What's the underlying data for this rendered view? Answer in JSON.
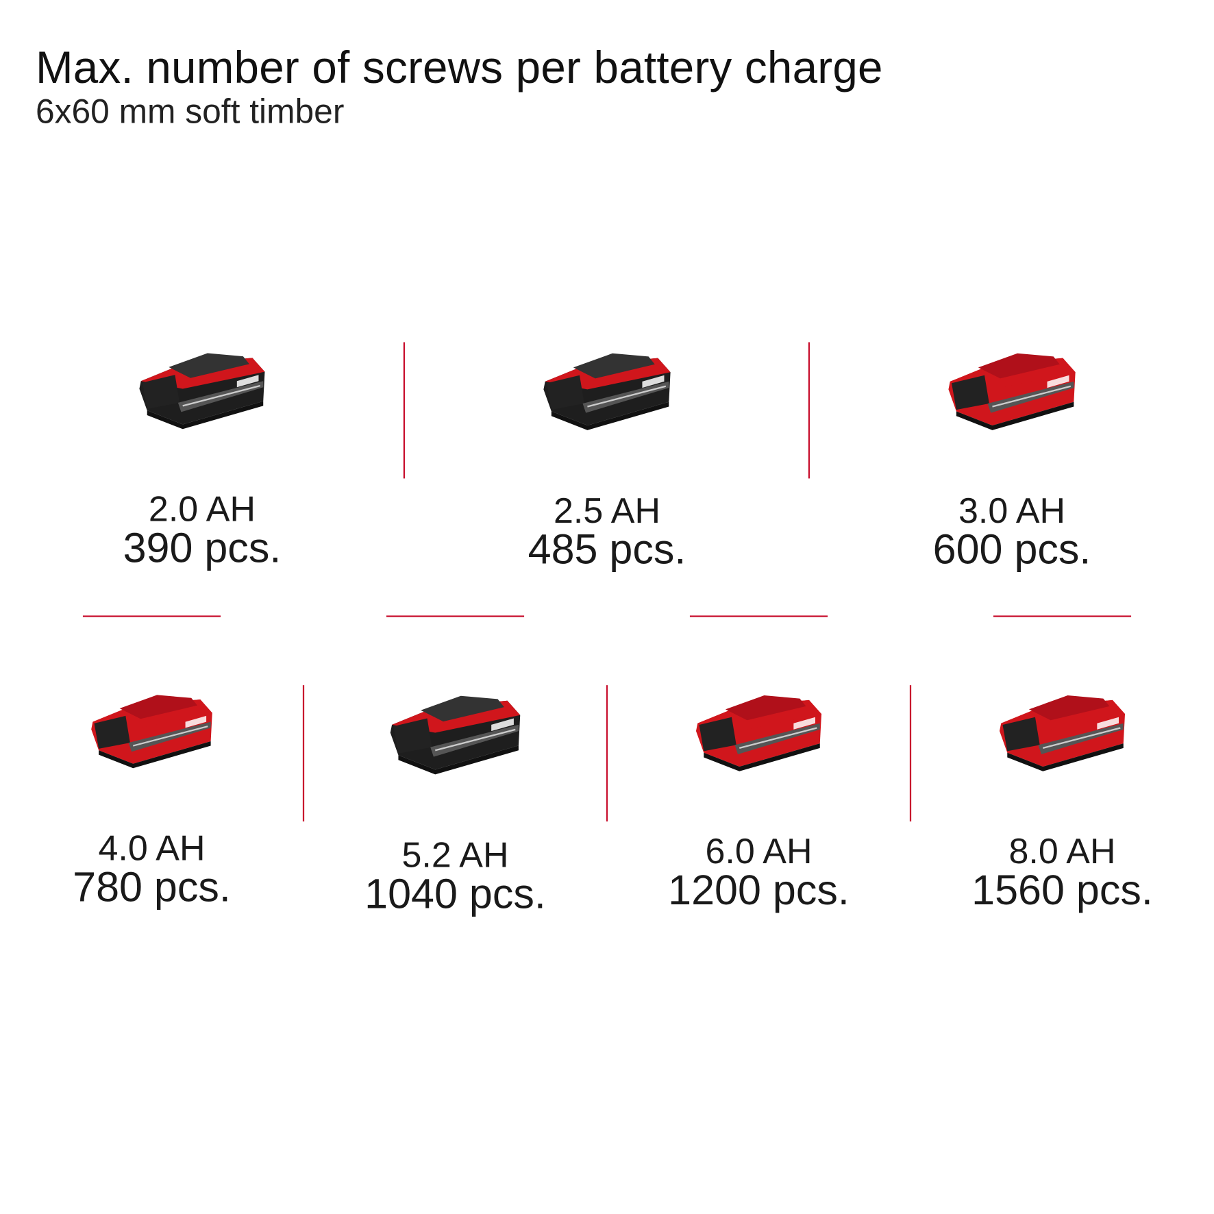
{
  "title": "Max. number of screws per battery charge",
  "subtitle": "6x60 mm soft timber",
  "accent_color": "#c8102e",
  "batteries": [
    {
      "capacity": "2.0 AH",
      "screws": "390 pcs.",
      "body_color": "#1e1e1e",
      "icon": "battery-pack-icon"
    },
    {
      "capacity": "2.5 AH",
      "screws": "485 pcs.",
      "body_color": "#1e1e1e",
      "icon": "battery-pack-icon"
    },
    {
      "capacity": "3.0 AH",
      "screws": "600 pcs.",
      "body_color": "#d0161c",
      "icon": "battery-pack-icon"
    },
    {
      "capacity": "4.0 AH",
      "screws": "780 pcs.",
      "body_color": "#d0161c",
      "icon": "battery-pack-icon"
    },
    {
      "capacity": "5.2 AH",
      "screws": "1040 pcs.",
      "body_color": "#1e1e1e",
      "icon": "battery-pack-icon"
    },
    {
      "capacity": "6.0 AH",
      "screws": "1200 pcs.",
      "body_color": "#d0161c",
      "icon": "battery-pack-icon"
    },
    {
      "capacity": "8.0 AH",
      "screws": "1560 pcs.",
      "body_color": "#d0161c",
      "icon": "battery-pack-icon"
    }
  ]
}
